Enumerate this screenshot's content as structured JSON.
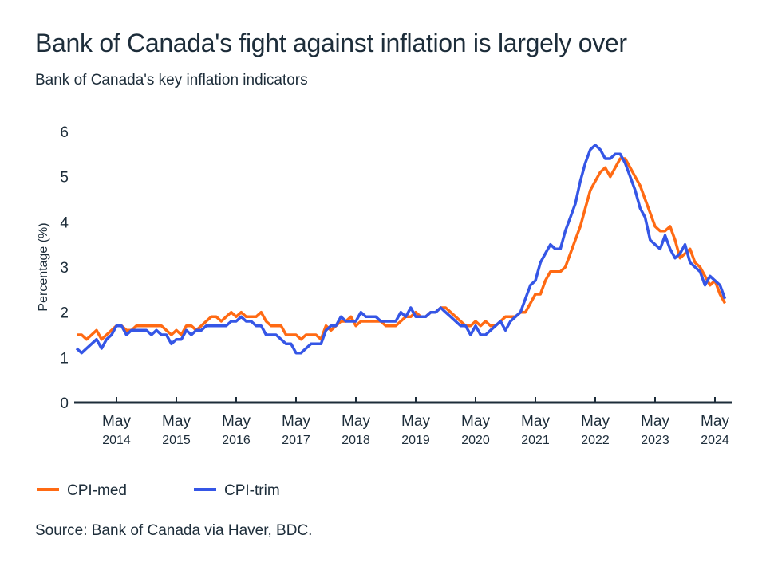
{
  "title": "Bank of Canada's fight against inflation is largely over",
  "subtitle": "Bank of Canada's key inflation indicators",
  "source": "Source: Bank of Canada via Haver, BDC.",
  "colors": {
    "CPI-med": "#ff6a13",
    "CPI-trim": "#3556e6",
    "text": "#1d2d3a"
  },
  "chart_data": {
    "type": "line",
    "title": "Bank of Canada's fight against inflation is largely over",
    "subtitle": "Bank of Canada's key inflation indicators",
    "xlabel": "",
    "ylabel": "Percentage (%)",
    "ylim": [
      0,
      6
    ],
    "yticks": [
      "0",
      "1",
      "2",
      "3",
      "4",
      "5",
      "6"
    ],
    "xrange": [
      "2013-09",
      "2024-07"
    ],
    "xticks": [
      {
        "date": "2014-05",
        "month": "May",
        "year": "2014"
      },
      {
        "date": "2015-05",
        "month": "May",
        "year": "2015"
      },
      {
        "date": "2016-05",
        "month": "May",
        "year": "2016"
      },
      {
        "date": "2017-05",
        "month": "May",
        "year": "2017"
      },
      {
        "date": "2018-05",
        "month": "May",
        "year": "2018"
      },
      {
        "date": "2019-05",
        "month": "May",
        "year": "2019"
      },
      {
        "date": "2020-05",
        "month": "May",
        "year": "2020"
      },
      {
        "date": "2021-05",
        "month": "May",
        "year": "2021"
      },
      {
        "date": "2022-05",
        "month": "May",
        "year": "2022"
      },
      {
        "date": "2023-05",
        "month": "May",
        "year": "2023"
      },
      {
        "date": "2024-05",
        "month": "May",
        "year": "2024"
      }
    ],
    "grid": false,
    "legend": "bottom-left",
    "x_start": "2013-09",
    "frequency": "monthly",
    "series": [
      {
        "name": "CPI-med",
        "values": [
          1.5,
          1.5,
          1.4,
          1.5,
          1.6,
          1.4,
          1.5,
          1.6,
          1.7,
          1.7,
          1.6,
          1.6,
          1.7,
          1.7,
          1.7,
          1.7,
          1.7,
          1.7,
          1.6,
          1.5,
          1.6,
          1.5,
          1.7,
          1.7,
          1.6,
          1.7,
          1.8,
          1.9,
          1.9,
          1.8,
          1.9,
          2.0,
          1.9,
          2.0,
          1.9,
          1.9,
          1.9,
          2.0,
          1.8,
          1.7,
          1.7,
          1.7,
          1.5,
          1.5,
          1.5,
          1.4,
          1.5,
          1.5,
          1.5,
          1.4,
          1.7,
          1.6,
          1.7,
          1.8,
          1.8,
          1.9,
          1.7,
          1.8,
          1.8,
          1.8,
          1.8,
          1.8,
          1.7,
          1.7,
          1.7,
          1.8,
          1.9,
          1.9,
          2.0,
          1.9,
          1.9,
          2.0,
          2.0,
          2.1,
          2.1,
          2.0,
          1.9,
          1.8,
          1.7,
          1.7,
          1.8,
          1.7,
          1.8,
          1.7,
          1.7,
          1.8,
          1.9,
          1.9,
          1.9,
          2.0,
          2.0,
          2.2,
          2.4,
          2.4,
          2.7,
          2.9,
          2.9,
          2.9,
          3.0,
          3.3,
          3.6,
          3.9,
          4.3,
          4.7,
          4.9,
          5.1,
          5.2,
          5.0,
          5.2,
          5.4,
          5.4,
          5.2,
          5.0,
          4.8,
          4.5,
          4.2,
          3.9,
          3.8,
          3.8,
          3.9,
          3.6,
          3.2,
          3.3,
          3.4,
          3.1,
          3.0,
          2.8,
          2.6,
          2.7,
          2.4,
          2.2
        ]
      },
      {
        "name": "CPI-trim",
        "values": [
          1.2,
          1.1,
          1.2,
          1.3,
          1.4,
          1.2,
          1.4,
          1.5,
          1.7,
          1.7,
          1.5,
          1.6,
          1.6,
          1.6,
          1.6,
          1.5,
          1.6,
          1.5,
          1.5,
          1.3,
          1.4,
          1.4,
          1.6,
          1.5,
          1.6,
          1.6,
          1.7,
          1.7,
          1.7,
          1.7,
          1.7,
          1.8,
          1.8,
          1.9,
          1.8,
          1.8,
          1.7,
          1.7,
          1.5,
          1.5,
          1.5,
          1.4,
          1.3,
          1.3,
          1.1,
          1.1,
          1.2,
          1.3,
          1.3,
          1.3,
          1.6,
          1.7,
          1.7,
          1.9,
          1.8,
          1.8,
          1.8,
          2.0,
          1.9,
          1.9,
          1.9,
          1.8,
          1.8,
          1.8,
          1.8,
          2.0,
          1.9,
          2.1,
          1.9,
          1.9,
          1.9,
          2.0,
          2.0,
          2.1,
          2.0,
          1.9,
          1.8,
          1.7,
          1.7,
          1.5,
          1.7,
          1.5,
          1.5,
          1.6,
          1.7,
          1.8,
          1.6,
          1.8,
          1.9,
          2.0,
          2.3,
          2.6,
          2.7,
          3.1,
          3.3,
          3.5,
          3.4,
          3.4,
          3.8,
          4.1,
          4.4,
          4.9,
          5.3,
          5.6,
          5.7,
          5.6,
          5.4,
          5.4,
          5.5,
          5.5,
          5.3,
          5.0,
          4.7,
          4.3,
          4.1,
          3.6,
          3.5,
          3.4,
          3.7,
          3.4,
          3.2,
          3.3,
          3.5,
          3.1,
          3.0,
          2.9,
          2.6,
          2.8,
          2.7,
          2.6,
          2.3
        ]
      }
    ]
  }
}
